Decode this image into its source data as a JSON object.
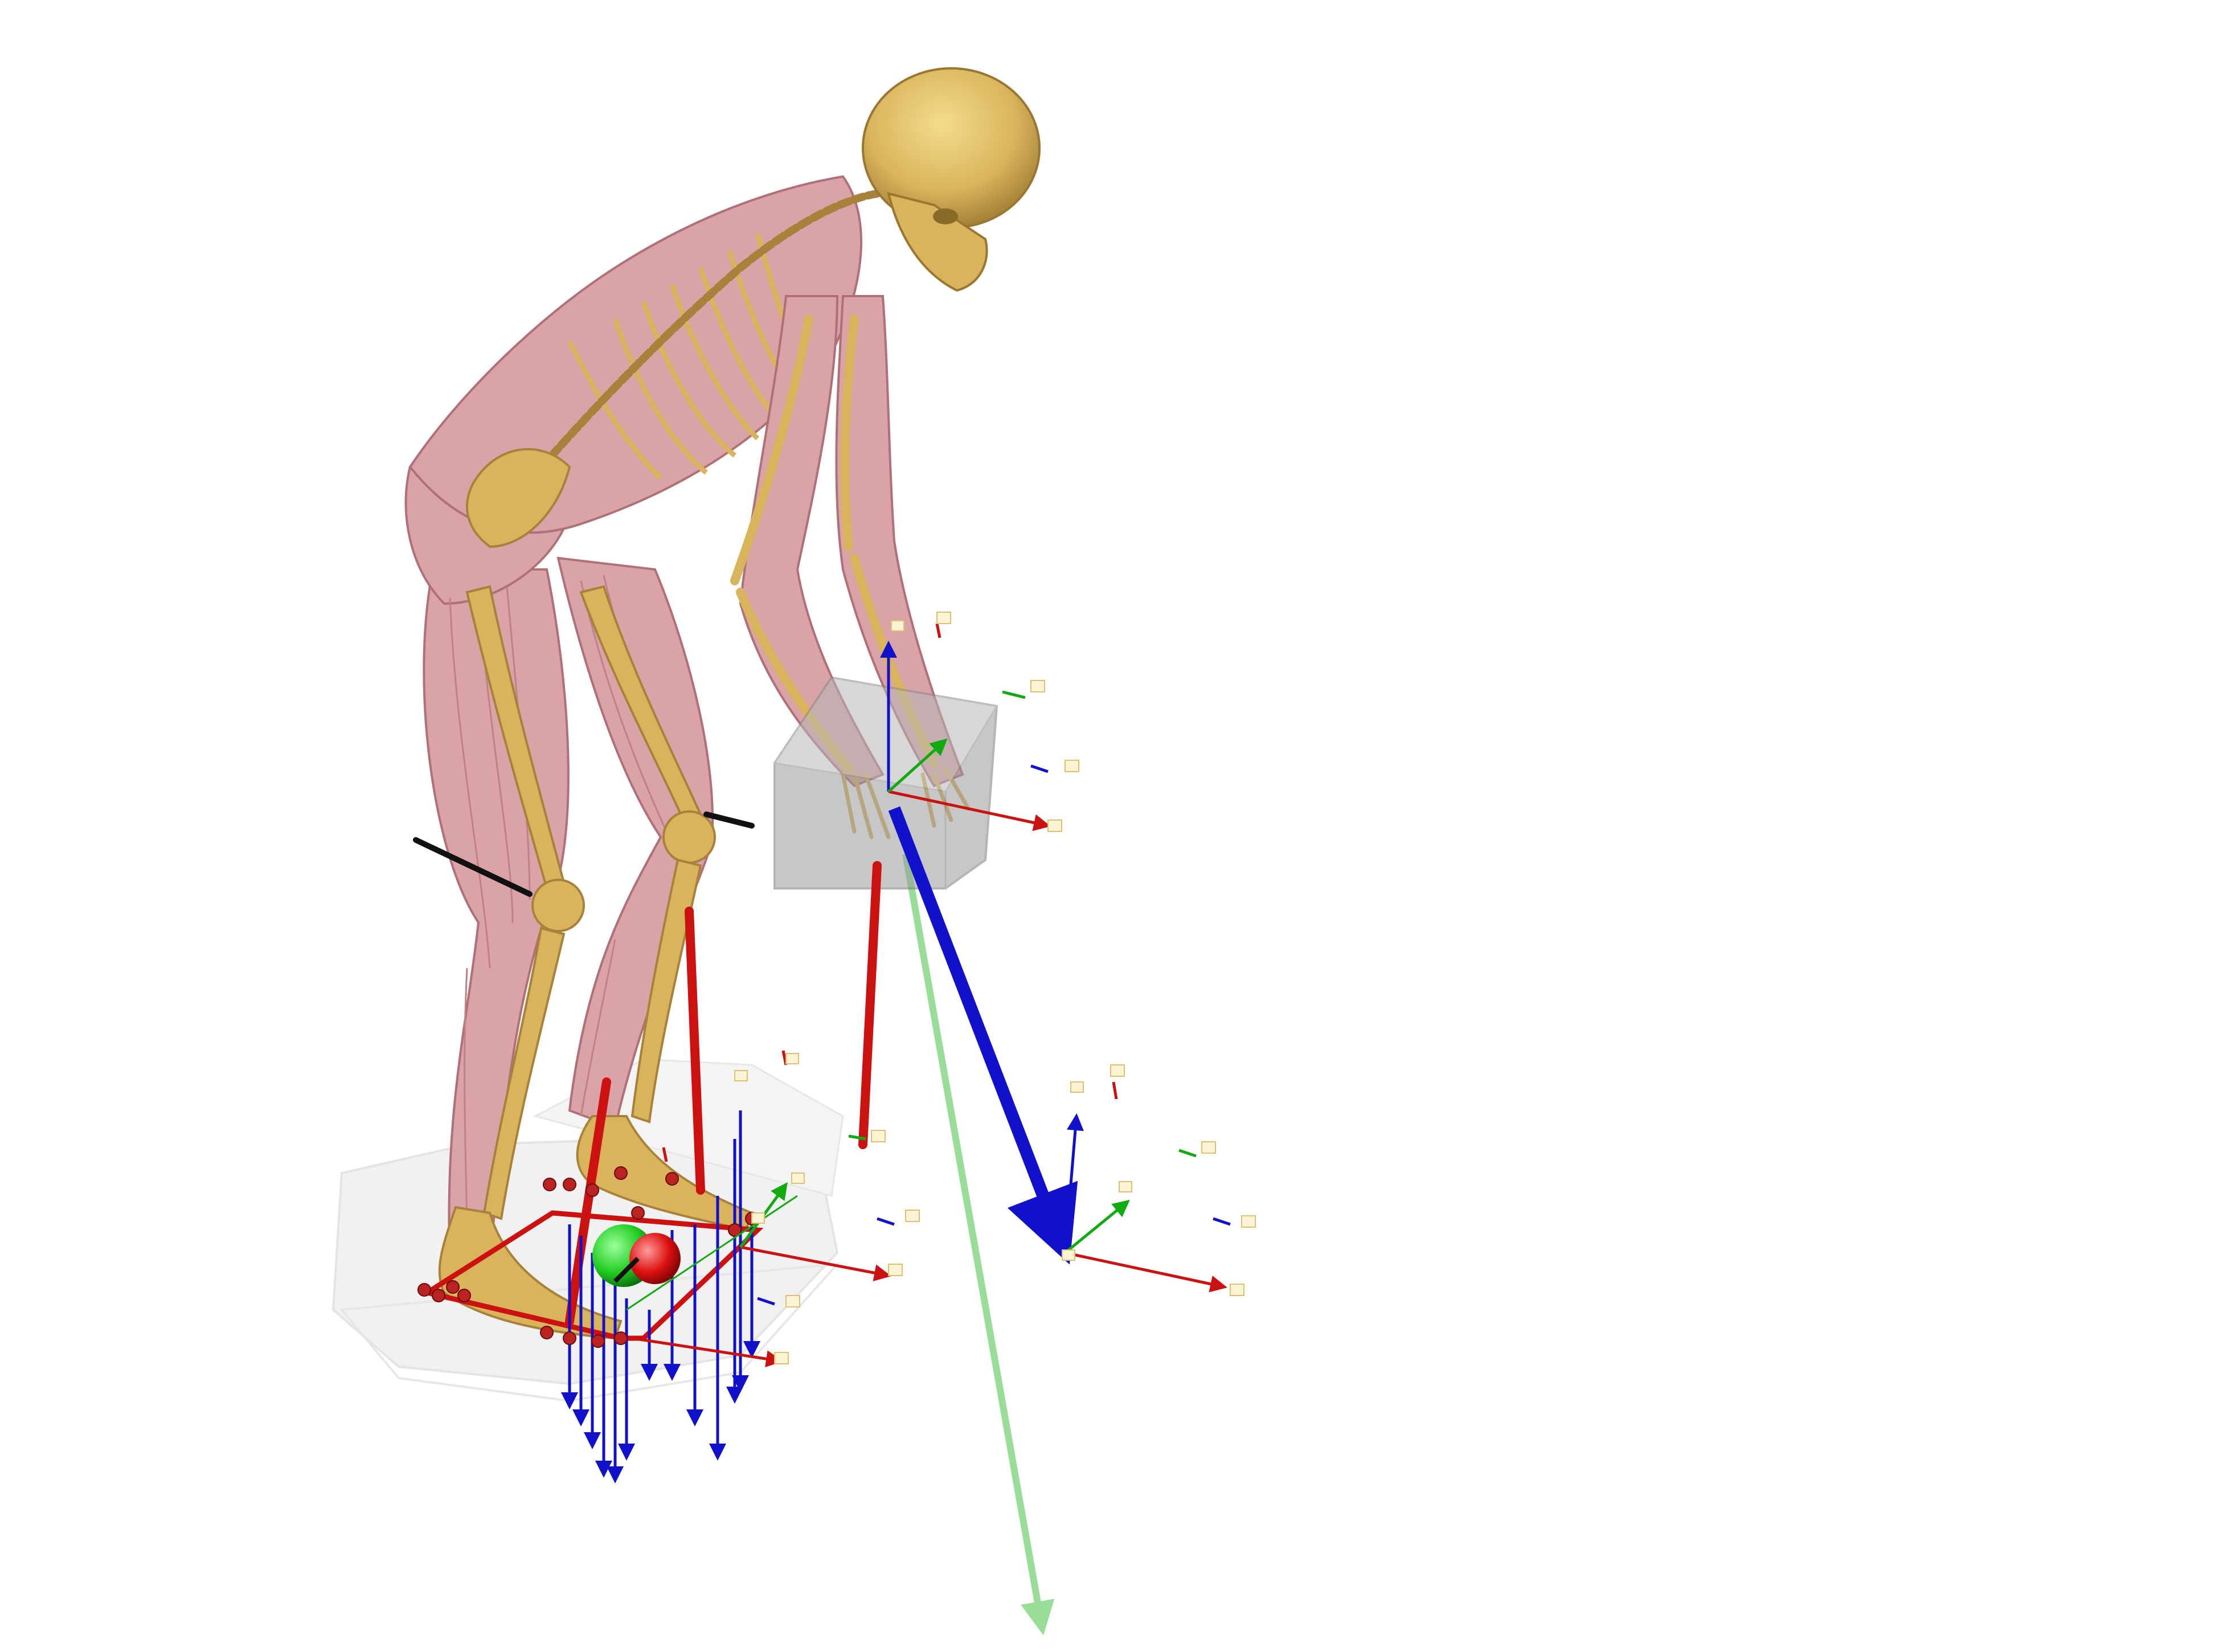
{
  "scene": {
    "subject": "musculoskeletal-model-lifting-box",
    "background_color": "#ffffff",
    "colors": {
      "bone": "#d9b45c",
      "bone_dark": "#a8823a",
      "muscle": "#d9a3a8",
      "muscle_dark": "#b07078",
      "force_plate": "#e6e6e6",
      "box": "#9a9a9a",
      "axis_x": "#cc1111",
      "axis_y": "#11aa11",
      "axis_z": "#1111cc",
      "ground_reaction": "#99dd99",
      "marker": "#bb2222",
      "com_green": "#22cc22",
      "com_red": "#dd1111",
      "label_box": "#f0d890",
      "dark_segment": "#111111"
    },
    "icons": [
      "skull-icon",
      "ribcage-icon",
      "pelvis-icon",
      "femur-icon",
      "foot-icon",
      "box-icon",
      "force-plate-icon",
      "coordinate-frame-icon",
      "force-arrow-icon",
      "marker-icon",
      "center-of-mass-icon"
    ]
  }
}
